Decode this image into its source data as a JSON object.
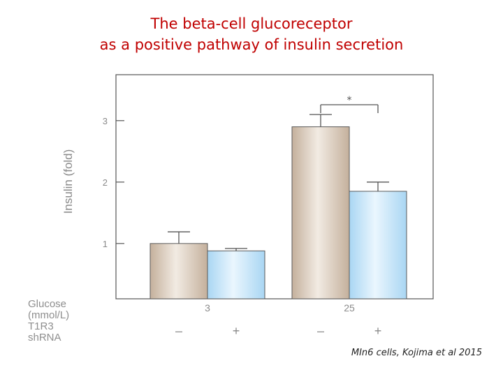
{
  "title_line1": "The beta-cell glucoreceptor",
  "title_line2": "as a positive pathway of insulin secretion",
  "credit": "MIn6 cells, Kojima et al 2015",
  "colors": {
    "title": "#c00000",
    "control_bar": "#d4c4b4",
    "shrna_bar": "#bfe0f6",
    "axis": "#555555"
  },
  "chart_data": {
    "type": "bar",
    "ylabel": "Insulin (fold)",
    "yticks": [
      "1",
      "2",
      "3"
    ],
    "ylim": [
      0.1,
      3.6
    ],
    "grid": false,
    "row_labels": {
      "glucose": [
        "Glucose",
        "(mmol/L)"
      ],
      "shrna": [
        "T1R3",
        "shRNA"
      ]
    },
    "groups": [
      {
        "glucose": "3",
        "bars": [
          {
            "shrna": "–",
            "value": 1.0,
            "error": 0.19
          },
          {
            "shrna": "+",
            "value": 0.88,
            "error": 0.04
          }
        ]
      },
      {
        "glucose": "25",
        "bars": [
          {
            "shrna": "–",
            "value": 2.9,
            "error": 0.2
          },
          {
            "shrna": "+",
            "value": 1.85,
            "error": 0.15
          }
        ]
      }
    ],
    "significance": {
      "marker": "*",
      "groups": [
        1
      ],
      "bars": [
        0,
        1
      ]
    }
  }
}
